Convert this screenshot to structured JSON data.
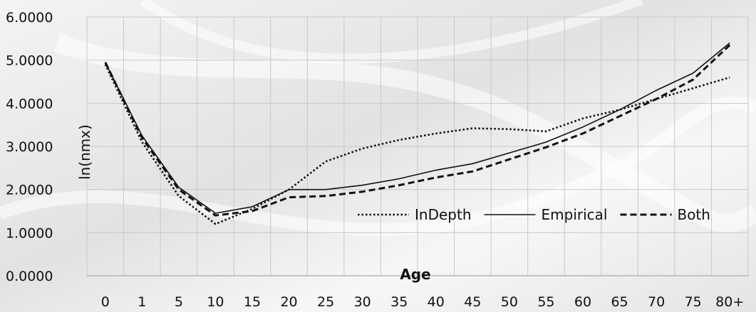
{
  "chart_data": {
    "type": "line",
    "title": "",
    "xlabel": "Age",
    "ylabel": "ln(nmx)",
    "categories": [
      "0",
      "1",
      "5",
      "10",
      "15",
      "20",
      "25",
      "30",
      "35",
      "40",
      "45",
      "50",
      "55",
      "60",
      "65",
      "70",
      "75",
      "80+"
    ],
    "y_tick_labels": [
      "0.0000",
      "1.0000",
      "2.0000",
      "3.0000",
      "4.0000",
      "5.0000",
      "6.0000"
    ],
    "ylim": [
      0,
      6
    ],
    "grid": true,
    "legend_position": "bottom-right",
    "series": [
      {
        "name": "InDepth",
        "style": "dotted",
        "values": [
          4.9,
          3.1,
          1.85,
          1.2,
          1.55,
          2.0,
          2.65,
          2.95,
          3.15,
          3.3,
          3.42,
          3.4,
          3.35,
          3.65,
          3.85,
          4.1,
          4.35,
          4.6
        ]
      },
      {
        "name": "Empirical",
        "style": "solid",
        "values": [
          4.95,
          3.25,
          2.05,
          1.45,
          1.6,
          2.0,
          2.0,
          2.1,
          2.25,
          2.45,
          2.6,
          2.85,
          3.1,
          3.45,
          3.85,
          4.3,
          4.7,
          5.4
        ]
      },
      {
        "name": "Both",
        "style": "dashed",
        "values": [
          4.95,
          3.2,
          2.0,
          1.4,
          1.5,
          1.82,
          1.85,
          1.95,
          2.1,
          2.28,
          2.42,
          2.7,
          2.98,
          3.3,
          3.7,
          4.1,
          4.55,
          5.35
        ]
      }
    ],
    "colors": {
      "line": "#111111",
      "grid": "#c8c8c8",
      "axis": "#aaaaaa"
    }
  }
}
